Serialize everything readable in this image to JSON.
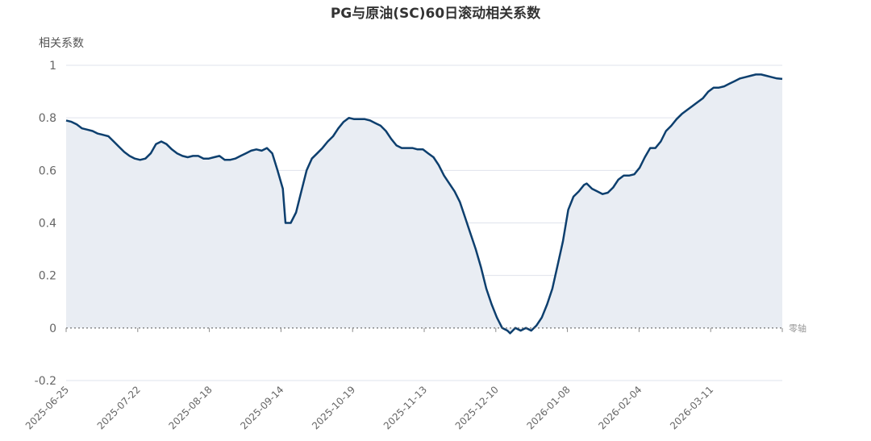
{
  "chart_data": {
    "type": "area",
    "title": "PG与原油(SC)60日滚动相关系数",
    "xlabel": "",
    "ylabel": "相关系数",
    "ylim": [
      -0.2,
      1
    ],
    "yticks": [
      "-0.2",
      "0",
      "0.2",
      "0.4",
      "0.6",
      "0.8",
      "1"
    ],
    "x_tick_labels": [
      "2025-06-25",
      "2025-07-22",
      "2025-08-18",
      "2025-09-14",
      "2025-10-19",
      "2025-11-13",
      "2025-12-10",
      "2026-01-08",
      "2026-02-04",
      "2026-03-11"
    ],
    "zero_line_label": "零轴",
    "grid": true,
    "colors": {
      "line": "#0d3f6e",
      "fill": "#e9edf3",
      "grid": "#dfe3ec",
      "zero": "#555555"
    },
    "series": [
      {
        "points": [
          [
            "2025-06-25",
            0.79
          ],
          [
            "2025-06-27",
            0.785
          ],
          [
            "2025-06-29",
            0.775
          ],
          [
            "2025-07-01",
            0.76
          ],
          [
            "2025-07-03",
            0.755
          ],
          [
            "2025-07-05",
            0.75
          ],
          [
            "2025-07-07",
            0.74
          ],
          [
            "2025-07-09",
            0.735
          ],
          [
            "2025-07-11",
            0.73
          ],
          [
            "2025-07-13",
            0.71
          ],
          [
            "2025-07-15",
            0.69
          ],
          [
            "2025-07-17",
            0.67
          ],
          [
            "2025-07-19",
            0.655
          ],
          [
            "2025-07-21",
            0.645
          ],
          [
            "2025-07-23",
            0.64
          ],
          [
            "2025-07-25",
            0.645
          ],
          [
            "2025-07-27",
            0.665
          ],
          [
            "2025-07-29",
            0.7
          ],
          [
            "2025-07-31",
            0.71
          ],
          [
            "2025-08-02",
            0.7
          ],
          [
            "2025-08-04",
            0.68
          ],
          [
            "2025-08-06",
            0.665
          ],
          [
            "2025-08-08",
            0.655
          ],
          [
            "2025-08-10",
            0.65
          ],
          [
            "2025-08-12",
            0.655
          ],
          [
            "2025-08-14",
            0.655
          ],
          [
            "2025-08-16",
            0.645
          ],
          [
            "2025-08-18",
            0.645
          ],
          [
            "2025-08-20",
            0.65
          ],
          [
            "2025-08-22",
            0.655
          ],
          [
            "2025-08-24",
            0.64
          ],
          [
            "2025-08-26",
            0.64
          ],
          [
            "2025-08-28",
            0.645
          ],
          [
            "2025-08-30",
            0.655
          ],
          [
            "2025-09-01",
            0.665
          ],
          [
            "2025-09-03",
            0.675
          ],
          [
            "2025-09-05",
            0.68
          ],
          [
            "2025-09-07",
            0.675
          ],
          [
            "2025-09-09",
            0.685
          ],
          [
            "2025-09-11",
            0.665
          ],
          [
            "2025-09-13",
            0.6
          ],
          [
            "2025-09-15",
            0.53
          ],
          [
            "2025-09-16",
            0.4
          ],
          [
            "2025-09-18",
            0.4
          ],
          [
            "2025-09-20",
            0.44
          ],
          [
            "2025-09-22",
            0.52
          ],
          [
            "2025-09-24",
            0.6
          ],
          [
            "2025-09-26",
            0.645
          ],
          [
            "2025-09-28",
            0.665
          ],
          [
            "2025-09-30",
            0.685
          ],
          [
            "2025-10-02",
            0.71
          ],
          [
            "2025-10-04",
            0.73
          ],
          [
            "2025-10-06",
            0.76
          ],
          [
            "2025-10-08",
            0.785
          ],
          [
            "2025-10-10",
            0.8
          ],
          [
            "2025-10-12",
            0.795
          ],
          [
            "2025-10-14",
            0.795
          ],
          [
            "2025-10-16",
            0.795
          ],
          [
            "2025-10-18",
            0.79
          ],
          [
            "2025-10-20",
            0.78
          ],
          [
            "2025-10-22",
            0.77
          ],
          [
            "2025-10-24",
            0.75
          ],
          [
            "2025-10-26",
            0.72
          ],
          [
            "2025-10-28",
            0.695
          ],
          [
            "2025-10-30",
            0.685
          ],
          [
            "2025-11-01",
            0.685
          ],
          [
            "2025-11-03",
            0.685
          ],
          [
            "2025-11-05",
            0.68
          ],
          [
            "2025-11-07",
            0.68
          ],
          [
            "2025-11-09",
            0.665
          ],
          [
            "2025-11-11",
            0.65
          ],
          [
            "2025-11-13",
            0.62
          ],
          [
            "2025-11-15",
            0.58
          ],
          [
            "2025-11-17",
            0.55
          ],
          [
            "2025-11-19",
            0.52
          ],
          [
            "2025-11-21",
            0.48
          ],
          [
            "2025-11-23",
            0.42
          ],
          [
            "2025-11-25",
            0.36
          ],
          [
            "2025-11-27",
            0.3
          ],
          [
            "2025-11-29",
            0.23
          ],
          [
            "2025-12-01",
            0.15
          ],
          [
            "2025-12-03",
            0.09
          ],
          [
            "2025-12-05",
            0.04
          ],
          [
            "2025-12-07",
            0.0
          ],
          [
            "2025-12-09",
            -0.01
          ],
          [
            "2025-12-10",
            -0.02
          ],
          [
            "2025-12-12",
            0.0
          ],
          [
            "2025-12-14",
            -0.01
          ],
          [
            "2025-12-16",
            0.0
          ],
          [
            "2025-12-18",
            -0.01
          ],
          [
            "2025-12-20",
            0.01
          ],
          [
            "2025-12-22",
            0.04
          ],
          [
            "2025-12-24",
            0.09
          ],
          [
            "2025-12-26",
            0.15
          ],
          [
            "2025-12-28",
            0.24
          ],
          [
            "2025-12-30",
            0.33
          ],
          [
            "2026-01-01",
            0.45
          ],
          [
            "2026-01-03",
            0.5
          ],
          [
            "2026-01-05",
            0.52
          ],
          [
            "2026-01-07",
            0.545
          ],
          [
            "2026-01-08",
            0.55
          ],
          [
            "2026-01-10",
            0.53
          ],
          [
            "2026-01-12",
            0.52
          ],
          [
            "2026-01-14",
            0.51
          ],
          [
            "2026-01-16",
            0.515
          ],
          [
            "2026-01-18",
            0.535
          ],
          [
            "2026-01-20",
            0.565
          ],
          [
            "2026-01-22",
            0.58
          ],
          [
            "2026-01-24",
            0.58
          ],
          [
            "2026-01-26",
            0.585
          ],
          [
            "2026-01-28",
            0.61
          ],
          [
            "2026-01-30",
            0.65
          ],
          [
            "2026-02-01",
            0.685
          ],
          [
            "2026-02-03",
            0.685
          ],
          [
            "2026-02-05",
            0.71
          ],
          [
            "2026-02-07",
            0.75
          ],
          [
            "2026-02-09",
            0.77
          ],
          [
            "2026-02-11",
            0.795
          ],
          [
            "2026-02-13",
            0.815
          ],
          [
            "2026-02-15",
            0.83
          ],
          [
            "2026-02-17",
            0.845
          ],
          [
            "2026-02-19",
            0.86
          ],
          [
            "2026-02-21",
            0.875
          ],
          [
            "2026-02-23",
            0.9
          ],
          [
            "2026-02-25",
            0.915
          ],
          [
            "2026-02-27",
            0.915
          ],
          [
            "2026-03-01",
            0.92
          ],
          [
            "2026-03-03",
            0.93
          ],
          [
            "2026-03-05",
            0.94
          ],
          [
            "2026-03-07",
            0.95
          ],
          [
            "2026-03-09",
            0.955
          ],
          [
            "2026-03-11",
            0.96
          ],
          [
            "2026-03-13",
            0.965
          ],
          [
            "2026-03-15",
            0.965
          ],
          [
            "2026-03-17",
            0.96
          ],
          [
            "2026-03-19",
            0.955
          ],
          [
            "2026-03-21",
            0.95
          ],
          [
            "2026-03-23",
            0.948
          ]
        ]
      }
    ]
  }
}
